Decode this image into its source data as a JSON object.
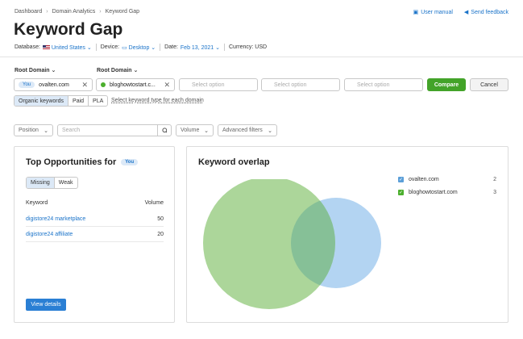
{
  "breadcrumb": [
    "Dashboard",
    "Domain Analytics",
    "Keyword Gap"
  ],
  "top_links": {
    "user_manual": "User manual",
    "send_feedback": "Send feedback"
  },
  "page_title": "Keyword Gap",
  "meta": {
    "database_label": "Database:",
    "database_value": "United States",
    "device_label": "Device:",
    "device_value": "Desktop",
    "date_label": "Date:",
    "date_value": "Feb 13, 2021",
    "currency": "Currency: USD"
  },
  "root_domain_label": "Root Domain",
  "domains": {
    "you_badge": "You",
    "first": "ovalten.com",
    "second": "bloghowtostart.c...",
    "placeholder": "Select option"
  },
  "buttons": {
    "compare": "Compare",
    "cancel": "Cancel",
    "view_details": "View details"
  },
  "keyword_types": [
    "Organic keywords",
    "Paid",
    "PLA"
  ],
  "keyword_type_hint": "Select keyword type for each domain",
  "filters": {
    "position": "Position",
    "search_placeholder": "Search",
    "volume": "Volume",
    "advanced": "Advanced filters"
  },
  "opportunities": {
    "title": "Top Opportunities for",
    "tabs": [
      "Missing",
      "Weak"
    ],
    "columns": {
      "keyword": "Keyword",
      "volume": "Volume"
    },
    "rows": [
      {
        "keyword": "digistore24 marketplace",
        "volume": "50"
      },
      {
        "keyword": "digistore24 affiliate",
        "volume": "20"
      }
    ]
  },
  "overlap": {
    "title": "Keyword overlap",
    "legend": [
      {
        "domain": "ovalten.com",
        "count": "2",
        "color": "#5b9fd8"
      },
      {
        "domain": "bloghowtostart.com",
        "count": "3",
        "color": "#4caf2e"
      }
    ]
  },
  "colors": {
    "accent": "#1a73c9",
    "compare_green": "#43a329",
    "circle_green": "#acd69a",
    "circle_blue": "#b3d4f2",
    "intersection": "#86c097"
  }
}
